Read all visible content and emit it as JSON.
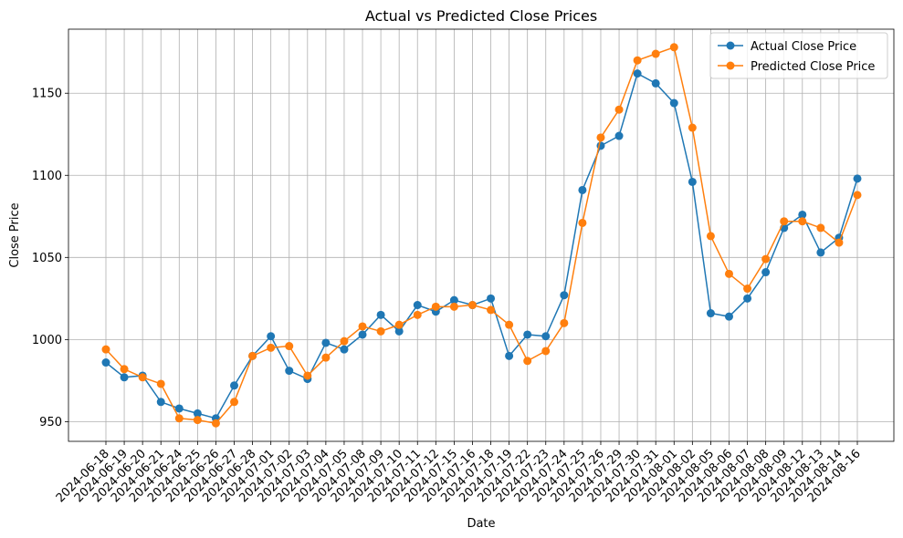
{
  "chart_data": {
    "type": "line",
    "title": "Actual vs Predicted Close Prices",
    "xlabel": "Date",
    "ylabel": "Close Price",
    "ylim": [
      938,
      1189
    ],
    "yticks": [
      950,
      1000,
      1050,
      1100,
      1150
    ],
    "grid": true,
    "legend_position": "top-right",
    "x": [
      "2024-06-18",
      "2024-06-19",
      "2024-06-20",
      "2024-06-21",
      "2024-06-24",
      "2024-06-25",
      "2024-06-26",
      "2024-06-27",
      "2024-06-28",
      "2024-07-01",
      "2024-07-02",
      "2024-07-03",
      "2024-07-04",
      "2024-07-05",
      "2024-07-08",
      "2024-07-09",
      "2024-07-10",
      "2024-07-11",
      "2024-07-12",
      "2024-07-15",
      "2024-07-16",
      "2024-07-18",
      "2024-07-19",
      "2024-07-22",
      "2024-07-23",
      "2024-07-24",
      "2024-07-25",
      "2024-07-26",
      "2024-07-29",
      "2024-07-30",
      "2024-07-31",
      "2024-08-01",
      "2024-08-02",
      "2024-08-05",
      "2024-08-06",
      "2024-08-07",
      "2024-08-08",
      "2024-08-09",
      "2024-08-12",
      "2024-08-13",
      "2024-08-14",
      "2024-08-16"
    ],
    "series": [
      {
        "name": "Actual Close Price",
        "color": "#1f77b4",
        "values": [
          986,
          977,
          978,
          962,
          958,
          955,
          952,
          972,
          990,
          1002,
          981,
          976,
          998,
          994,
          1003,
          1015,
          1005,
          1021,
          1017,
          1024,
          1021,
          1025,
          990,
          1003,
          1002,
          1027,
          1091,
          1118,
          1124,
          1162,
          1156,
          1144,
          1096,
          1016,
          1014,
          1025,
          1041,
          1068,
          1076,
          1053,
          1062,
          1098
        ]
      },
      {
        "name": "Predicted Close Price",
        "color": "#ff7f0e",
        "values": [
          994,
          982,
          977,
          973,
          952,
          951,
          949,
          962,
          990,
          995,
          996,
          978,
          989,
          999,
          1008,
          1005,
          1009,
          1015,
          1020,
          1020,
          1021,
          1018,
          1009,
          987,
          993,
          1010,
          1071,
          1123,
          1140,
          1170,
          1174,
          1178,
          1129,
          1063,
          1040,
          1031,
          1049,
          1072,
          1072,
          1068,
          1059,
          1088
        ]
      }
    ]
  }
}
